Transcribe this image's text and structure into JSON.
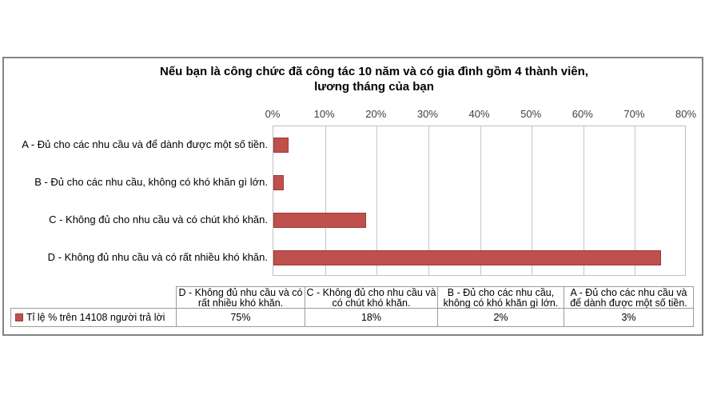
{
  "title": {
    "line1": "Nếu bạn là công chức đã công tác 10 năm và có gia đình gồm 4 thành viên,",
    "line2": "lương tháng của bạn"
  },
  "chart_data": {
    "type": "bar",
    "orientation": "horizontal",
    "title": "Nếu bạn là công chức đã công tác 10 năm và có gia đình gồm 4 thành viên, lương tháng của bạn",
    "categories": [
      "A - Đủ cho các nhu cầu và để dành được một số tiền.",
      "B - Đủ cho các nhu cầu, không có khó khăn gì lớn.",
      "C - Không đủ cho nhu cầu và có chút khó khăn.",
      "D - Không đủ nhu cầu và có rất nhiều khó khăn."
    ],
    "series": [
      {
        "name": "Tỉ lệ % trên 14108 người trả lời",
        "values": [
          3,
          2,
          18,
          75
        ]
      }
    ],
    "x_axis": {
      "min": 0,
      "max": 80,
      "step": 10,
      "tick_labels": [
        "0%",
        "10%",
        "20%",
        "30%",
        "40%",
        "50%",
        "60%",
        "70%",
        "80%"
      ],
      "position": "top"
    },
    "grid": true,
    "legend_position": "data-table-left",
    "colors": {
      "bar_fill": "#C0504D",
      "bar_border": "#9E3B38",
      "gridline": "#C6C6C6",
      "plot_border": "#BFBFBF"
    }
  },
  "data_table": {
    "row_label": "Tỉ lệ % trên 14108 người trả lời",
    "column_headers": [
      "D - Không đủ nhu cầu và có rất nhiều khó khăn.",
      "C - Không đủ cho nhu cầu và có chút khó khăn.",
      "B - Đủ cho các nhu cầu, không có khó khăn gì lớn.",
      "A - Đủ cho các nhu cầu và để dành được một số tiền."
    ],
    "values": [
      "75%",
      "18%",
      "2%",
      "3%"
    ]
  }
}
